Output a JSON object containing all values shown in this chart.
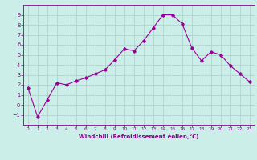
{
  "x_values": [
    0,
    1,
    2,
    3,
    4,
    5,
    6,
    7,
    8,
    9,
    10,
    11,
    12,
    13,
    14,
    15,
    16,
    17,
    18,
    19,
    20,
    21,
    22,
    23
  ],
  "y_values": [
    1.7,
    -1.2,
    0.5,
    2.2,
    2.0,
    2.4,
    2.7,
    3.1,
    3.5,
    4.5,
    5.6,
    5.4,
    6.4,
    7.7,
    9.0,
    9.0,
    8.1,
    5.7,
    4.4,
    5.3,
    5.0,
    3.9,
    3.1,
    2.3
  ],
  "line_color": "#990099",
  "marker": "D",
  "marker_size": 1.8,
  "line_width": 0.8,
  "bg_color": "#cceee8",
  "grid_color": "#aacccc",
  "xlabel": "Windchill (Refroidissement éolien,°C)",
  "xlabel_color": "#880088",
  "tick_color": "#880088",
  "ylim": [
    -2,
    10
  ],
  "xlim": [
    -0.5,
    23.5
  ],
  "yticks": [
    -1,
    0,
    1,
    2,
    3,
    4,
    5,
    6,
    7,
    8,
    9
  ],
  "xticks": [
    0,
    1,
    2,
    3,
    4,
    5,
    6,
    7,
    8,
    9,
    10,
    11,
    12,
    13,
    14,
    15,
    16,
    17,
    18,
    19,
    20,
    21,
    22,
    23
  ]
}
